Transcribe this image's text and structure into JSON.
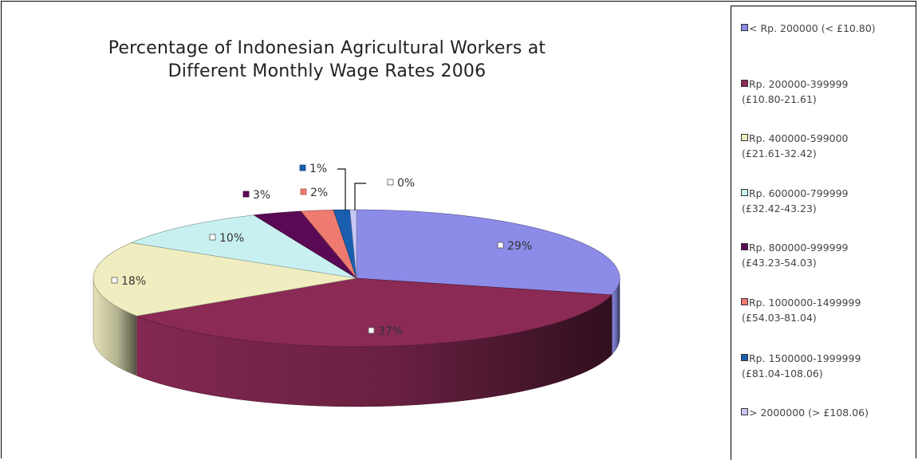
{
  "chart_data": {
    "type": "pie",
    "title_lines": [
      "Percentage of Indonesian Agricultural Workers at",
      "Different Monthly  Wage Rates 2006"
    ],
    "style": "3d-pie",
    "legend_position": "right",
    "slices": [
      {
        "name_lines": [
          "< Rp. 200000  (< £10.80)"
        ],
        "value": 29,
        "label": "29%",
        "color": "#8C8CE8"
      },
      {
        "name_lines": [
          "Rp. 200000-399999",
          "(£10.80-21.61)"
        ],
        "value": 37,
        "label": "37%",
        "color": "#8A2A55"
      },
      {
        "name_lines": [
          "Rp. 400000-599000",
          "(£21.61-32.42)"
        ],
        "value": 18,
        "label": "18%",
        "color": "#F0EEC0"
      },
      {
        "name_lines": [
          "Rp. 600000-799999",
          "(£32.42-43.23)"
        ],
        "value": 10,
        "label": "10%",
        "color": "#C8F0F0"
      },
      {
        "name_lines": [
          "Rp. 800000-999999",
          "(£43.23-54.03)"
        ],
        "value": 3,
        "label": "3%",
        "color": "#5A0A55"
      },
      {
        "name_lines": [
          "Rp. 1000000-1499999",
          "(£54.03-81.04)"
        ],
        "value": 2,
        "label": "2%",
        "color": "#EE7A70"
      },
      {
        "name_lines": [
          "Rp. 1500000-1999999",
          "(£81.04-108.06)"
        ],
        "value": 1,
        "label": "1%",
        "color": "#1A5EB0"
      },
      {
        "name_lines": [
          "> 2000000  (> £108.06)"
        ],
        "value": 0.4,
        "label": "0%",
        "color": "#C8C8F8"
      }
    ]
  }
}
